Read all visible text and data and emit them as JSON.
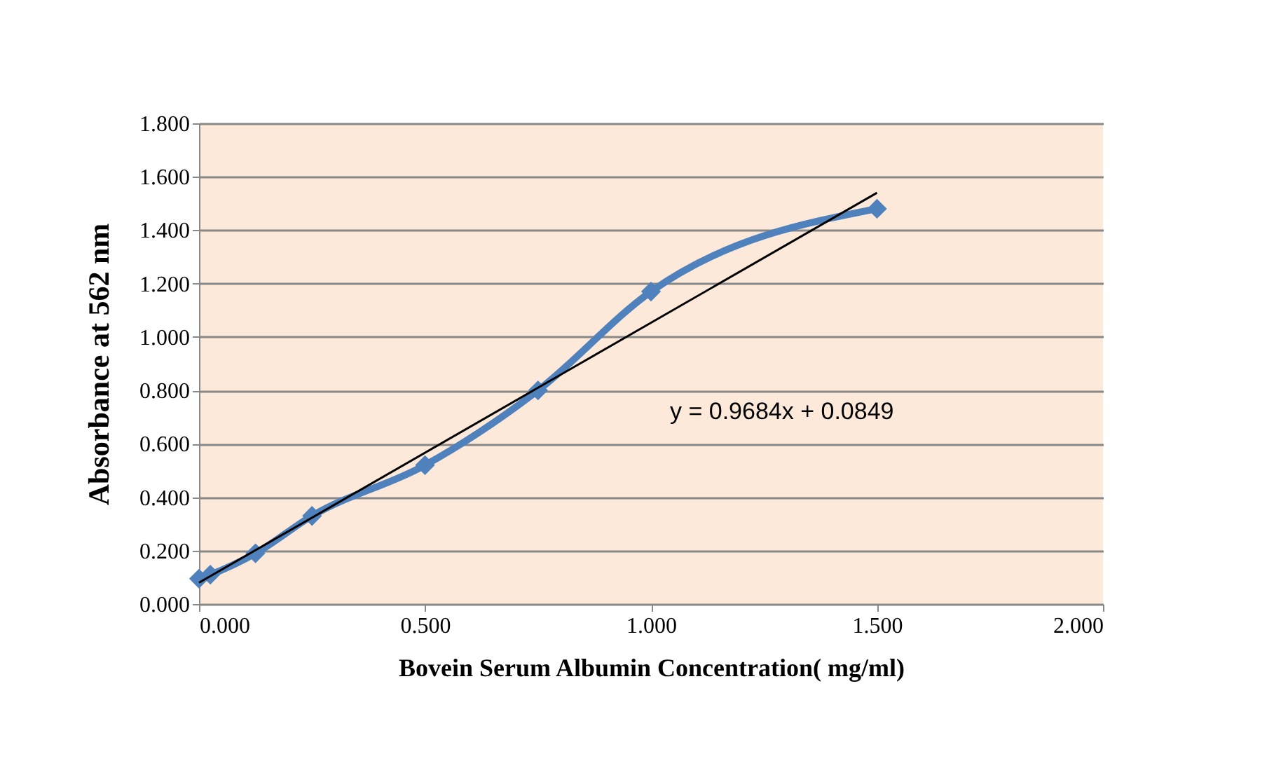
{
  "chart_data": {
    "type": "line",
    "xlabel": "Bovein Serum Albumin Concentration( mg/ml)",
    "ylabel": "Absorbance at 562 nm",
    "series": [
      {
        "color": "#4f81bd",
        "marker": "diamond",
        "x": [
          0,
          0.025,
          0.125,
          0.25,
          0.5,
          0.75,
          1.0,
          1.5
        ],
        "values": [
          0.095,
          0.11,
          0.19,
          0.33,
          0.52,
          0.8,
          1.17,
          1.48
        ]
      },
      {
        "color": "#000000",
        "marker": "none",
        "x": [
          0,
          1.5
        ],
        "values": [
          0.08,
          1.54
        ]
      }
    ],
    "annotations": [
      "y = 0.9684x + 0.0849"
    ],
    "xlim": [
      0,
      2
    ],
    "xticks": [
      {
        "value": 0,
        "label": "0.000"
      },
      {
        "value": 0.5,
        "label": "0.500"
      },
      {
        "value": 1,
        "label": "1.000"
      },
      {
        "value": 1.5,
        "label": "1.500"
      },
      {
        "value": 2,
        "label": "2.000"
      }
    ],
    "ylim": [
      0,
      1.8
    ],
    "yticks": [
      {
        "value": 0,
        "label": "0.000"
      },
      {
        "value": 0.2,
        "label": "0.200"
      },
      {
        "value": 0.4,
        "label": "0.400"
      },
      {
        "value": 0.6,
        "label": "0.600"
      },
      {
        "value": 0.8,
        "label": "0.800"
      },
      {
        "value": 1,
        "label": "1.000"
      },
      {
        "value": 1.2,
        "label": "1.200"
      },
      {
        "value": 1.4,
        "label": "1.400"
      },
      {
        "value": 1.6,
        "label": "1.600"
      },
      {
        "value": 1.8,
        "label": "1.800"
      }
    ],
    "grid": "y"
  }
}
